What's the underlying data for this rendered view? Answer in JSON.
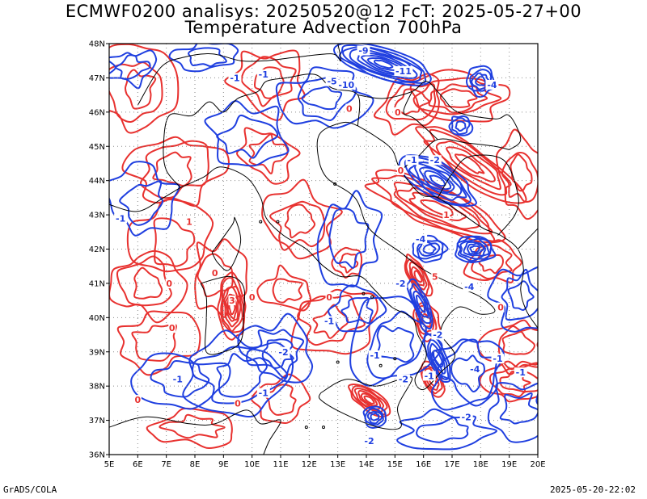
{
  "title_line1": "ECMWF0200 analisys: 20250520@12 FcT: 2025-05-27+00",
  "title_line2": "Temperature Advection 700hPa",
  "footer_left": "GrADS/COLA",
  "footer_right": "2025-05-20-22:02",
  "colors": {
    "positive": "#e8312f",
    "negative": "#1f3fe0",
    "coast": "#000000",
    "grid": "#808080"
  },
  "map": {
    "lat_labels": [
      "48N",
      "47N",
      "46N",
      "45N",
      "44N",
      "43N",
      "42N",
      "41N",
      "40N",
      "39N",
      "38N",
      "37N",
      "36N"
    ],
    "lon_labels": [
      "5E",
      "6E",
      "7E",
      "8E",
      "9E",
      "10E",
      "11E",
      "12E",
      "13E",
      "14E",
      "15E",
      "16E",
      "17E",
      "18E",
      "19E",
      "20E"
    ],
    "lat_range": [
      36,
      48
    ],
    "lon_range": [
      5,
      20
    ],
    "contour_labels": [
      {
        "lon": 13.9,
        "lat": 47.8,
        "text": "-9",
        "sign": "neg"
      },
      {
        "lon": 15.3,
        "lat": 47.2,
        "text": "-11",
        "sign": "neg"
      },
      {
        "lon": 13.3,
        "lat": 46.8,
        "text": "-10",
        "sign": "neg"
      },
      {
        "lon": 12.8,
        "lat": 46.9,
        "text": "-5",
        "sign": "neg"
      },
      {
        "lon": 10.4,
        "lat": 47.1,
        "text": "-1",
        "sign": "neg"
      },
      {
        "lon": 9.4,
        "lat": 47.0,
        "text": "-1",
        "sign": "neg"
      },
      {
        "lon": 15.6,
        "lat": 44.6,
        "text": "-1",
        "sign": "neg"
      },
      {
        "lon": 16.4,
        "lat": 44.6,
        "text": "-2",
        "sign": "neg"
      },
      {
        "lon": 16.8,
        "lat": 43.0,
        "text": "1",
        "sign": "pos"
      },
      {
        "lon": 15.9,
        "lat": 42.3,
        "text": "-4",
        "sign": "neg"
      },
      {
        "lon": 16.4,
        "lat": 41.2,
        "text": "5",
        "sign": "pos"
      },
      {
        "lon": 17.6,
        "lat": 40.9,
        "text": "-4",
        "sign": "neg"
      },
      {
        "lon": 15.2,
        "lat": 41.0,
        "text": "-2",
        "sign": "neg"
      },
      {
        "lon": 9.3,
        "lat": 40.5,
        "text": "3",
        "sign": "pos"
      },
      {
        "lon": 10.0,
        "lat": 40.6,
        "text": "0",
        "sign": "pos"
      },
      {
        "lon": 8.7,
        "lat": 41.3,
        "text": "0",
        "sign": "pos"
      },
      {
        "lon": 7.1,
        "lat": 41.0,
        "text": "0",
        "sign": "pos"
      },
      {
        "lon": 12.7,
        "lat": 40.6,
        "text": "0",
        "sign": "pos"
      },
      {
        "lon": 12.7,
        "lat": 39.9,
        "text": "-1",
        "sign": "neg"
      },
      {
        "lon": 11.1,
        "lat": 39.0,
        "text": "-2",
        "sign": "neg"
      },
      {
        "lon": 7.4,
        "lat": 38.2,
        "text": "-1",
        "sign": "neg"
      },
      {
        "lon": 10.4,
        "lat": 37.8,
        "text": "-1",
        "sign": "neg"
      },
      {
        "lon": 9.5,
        "lat": 37.5,
        "text": "0",
        "sign": "pos"
      },
      {
        "lon": 6.0,
        "lat": 37.6,
        "text": "0",
        "sign": "pos"
      },
      {
        "lon": 15.3,
        "lat": 38.2,
        "text": "-2",
        "sign": "neg"
      },
      {
        "lon": 16.2,
        "lat": 38.3,
        "text": "-1",
        "sign": "neg"
      },
      {
        "lon": 17.8,
        "lat": 38.5,
        "text": "-4",
        "sign": "neg"
      },
      {
        "lon": 17.5,
        "lat": 37.1,
        "text": "-2",
        "sign": "neg"
      },
      {
        "lon": 19.4,
        "lat": 38.4,
        "text": "-1",
        "sign": "neg"
      },
      {
        "lon": 18.6,
        "lat": 38.8,
        "text": "-1",
        "sign": "neg"
      },
      {
        "lon": 14.1,
        "lat": 36.4,
        "text": "-2",
        "sign": "neg"
      },
      {
        "lon": 14.3,
        "lat": 38.9,
        "text": "-1",
        "sign": "neg"
      },
      {
        "lon": 16.5,
        "lat": 39.5,
        "text": "-2",
        "sign": "neg"
      },
      {
        "lon": 13.4,
        "lat": 46.1,
        "text": "0",
        "sign": "pos"
      },
      {
        "lon": 15.1,
        "lat": 46.0,
        "text": "0",
        "sign": "pos"
      },
      {
        "lon": 15.2,
        "lat": 44.3,
        "text": "0",
        "sign": "pos"
      },
      {
        "lon": 18.4,
        "lat": 46.8,
        "text": "-4",
        "sign": "neg"
      },
      {
        "lon": 18.7,
        "lat": 40.3,
        "text": "0",
        "sign": "pos"
      },
      {
        "lon": 5.4,
        "lat": 42.9,
        "text": "-1",
        "sign": "neg"
      },
      {
        "lon": 7.2,
        "lat": 39.7,
        "text": "0",
        "sign": "pos"
      },
      {
        "lon": 7.8,
        "lat": 42.8,
        "text": "1",
        "sign": "pos"
      }
    ]
  }
}
